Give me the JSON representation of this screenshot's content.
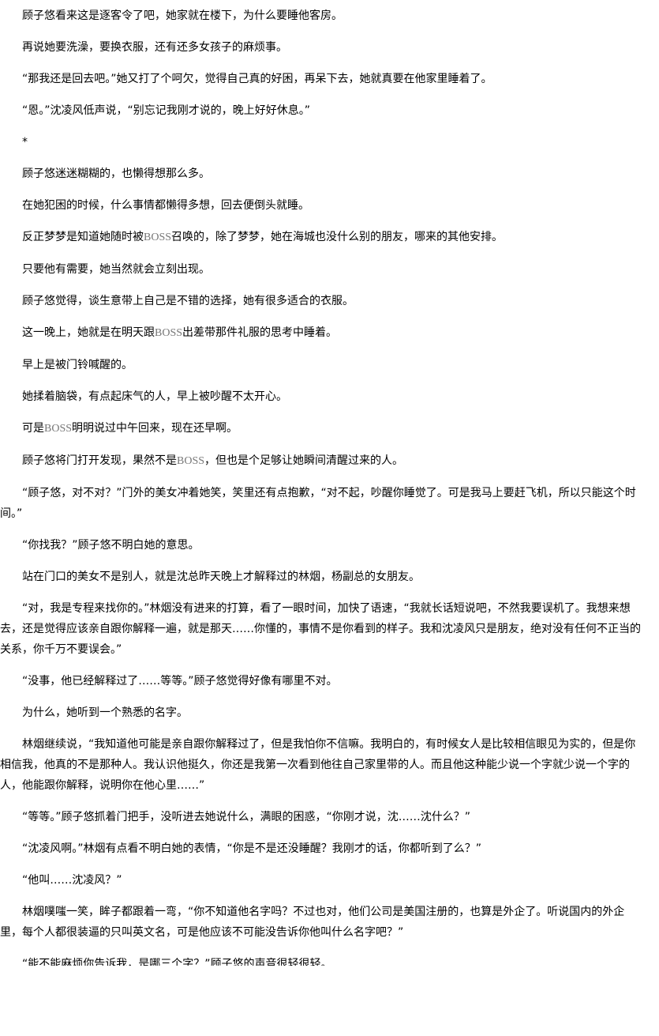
{
  "document": {
    "highlight_term": "BOSS",
    "highlight_color": "#777777",
    "paragraphs": [
      "顾子悠看来这是逐客令了吧，她家就在楼下，为什么要睡他客房。",
      "再说她要洗澡，要换衣服，还有还多女孩子的麻烦事。",
      "“那我还是回去吧。”她又打了个呵欠，觉得自己真的好困，再呆下去，她就真要在他家里睡着了。",
      "“恩。”沈凌风低声说，“别忘记我刚才说的，晚上好好休息。”",
      "*",
      "顾子悠迷迷糊糊的，也懒得想那么多。",
      "在她犯困的时候，什么事情都懒得多想，回去便倒头就睡。",
      "反正梦梦是知道她随时被BOSS召唤的，除了梦梦，她在海城也没什么别的朋友，哪来的其他安排。",
      "只要他有需要，她当然就会立刻出现。",
      "顾子悠觉得，谈生意带上自己是不错的选择，她有很多适合的衣服。",
      "这一晚上，她就是在明天跟BOSS出差带那件礼服的思考中睡着。",
      "早上是被门铃喊醒的。",
      "她揉着脑袋，有点起床气的人，早上被吵醒不太开心。",
      "可是BOSS明明说过中午回来，现在还早啊。",
      "顾子悠将门打开发现，果然不是BOSS，但也是个足够让她瞬间清醒过来的人。",
      "“顾子悠，对不对？”门外的美女冲着她笑，笑里还有点抱歉，“对不起，吵醒你睡觉了。可是我马上要赶飞机，所以只能这个时间。”",
      "“你找我？”顾子悠不明白她的意思。",
      "站在门口的美女不是别人，就是沈总昨天晚上才解释过的林烟，杨副总的女朋友。",
      "“对，我是专程来找你的。”林烟没有进来的打算，看了一眼时间，加快了语速，“我就长话短说吧，不然我要误机了。我想来想去，还是觉得应该亲自跟你解释一遍，就是那天……你懂的，事情不是你看到的样子。我和沈凌风只是朋友，绝对没有任何不正当的关系，你千万不要误会。”",
      "“没事，他已经解释过了……等等。”顾子悠觉得好像有哪里不对。",
      "为什么，她听到一个熟悉的名字。",
      "林烟继续说，“我知道他可能是亲自跟你解释过了，但是我怕你不信嘛。我明白的，有时候女人是比较相信眼见为实的，但是你相信我，他真的不是那种人。我认识他挺久，你还是我第一次看到他往自己家里带的人。而且他这种能少说一个字就少说一个字的人，他能跟你解释，说明你在他心里……”",
      "“等等。”顾子悠抓着门把手，没听进去她说什么，满眼的困惑，“你刚才说，沈……沈什么？”",
      "“沈凌风啊。”林烟有点看不明白她的表情，“你是不是还没睡醒？我刚才的话，你都听到了么？”",
      "“他叫……沈凌风？”",
      "林烟噗嗤一笑，眸子都跟着一弯，“你不知道他名字吗？不过也对，他们公司是美国注册的，也算是外企了。听说国内的外企里，每个人都很装逼的只叫英文名，可是他应该不可能没告诉你他叫什么名字吧？”",
      "“能不能麻烦你告诉我，是哪三个字？”顾子悠的声音很轻很轻。"
    ]
  }
}
